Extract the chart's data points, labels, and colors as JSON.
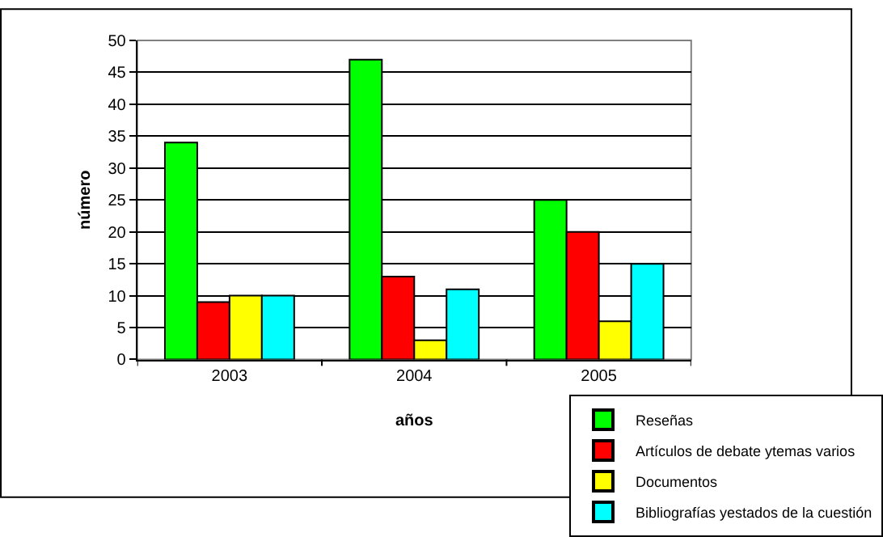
{
  "chart_data": {
    "type": "bar",
    "xlabel": "años",
    "ylabel": "número",
    "categories": [
      "2003",
      "2004",
      "2005"
    ],
    "series": [
      {
        "name": "Reseñas",
        "color": "#00ff00",
        "values": [
          34,
          47,
          25
        ]
      },
      {
        "name": "Artículos de debate ytemas varios",
        "color": "#ff0000",
        "values": [
          9,
          13,
          20
        ]
      },
      {
        "name": "Documentos",
        "color": "#ffff00",
        "values": [
          10,
          3,
          6
        ]
      },
      {
        "name": "Bibliografías yestados de la cuestión",
        "color": "#00ffff",
        "values": [
          10,
          11,
          15
        ]
      }
    ],
    "ylim": [
      0,
      50
    ],
    "yticks": [
      0,
      5,
      10,
      15,
      20,
      25,
      30,
      35,
      40,
      45,
      50
    ],
    "grid": "y",
    "legend": "bottom right"
  }
}
